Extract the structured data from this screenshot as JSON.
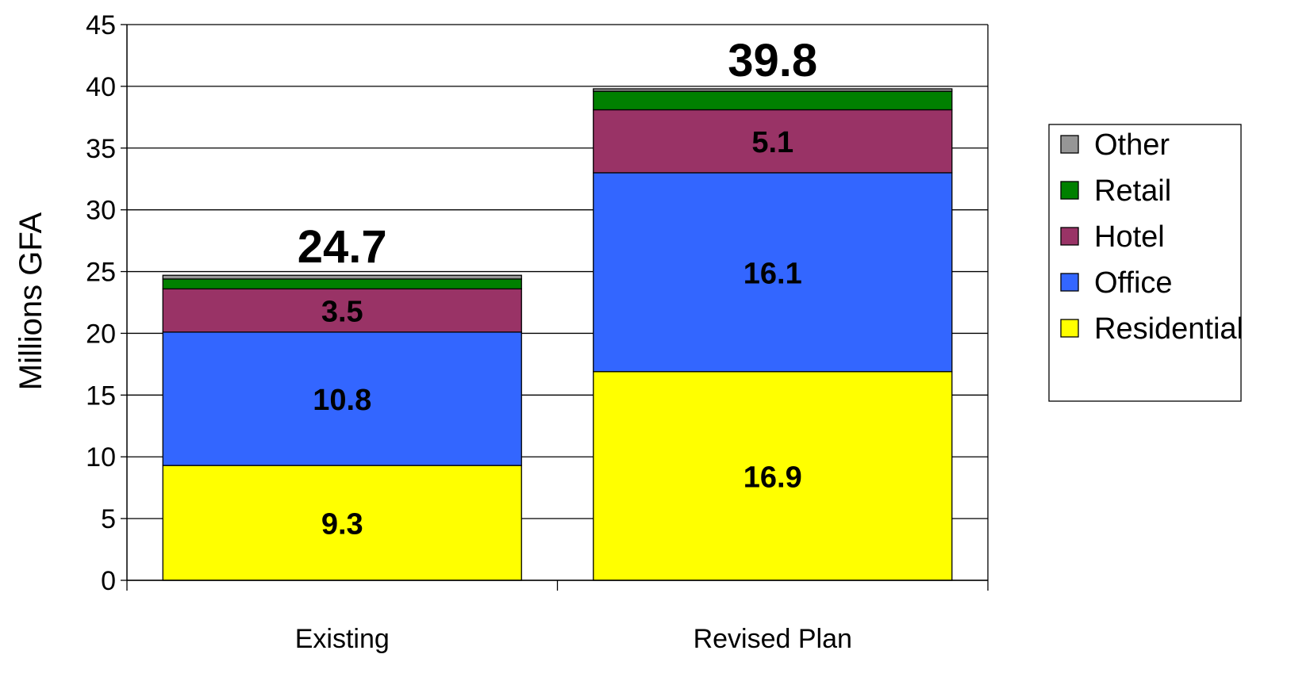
{
  "chart_data": {
    "type": "bar",
    "stacked": true,
    "categories": [
      "Existing",
      "Revised Plan"
    ],
    "ylabel": "Millions GFA",
    "xlabel": "",
    "ylim": [
      0,
      45
    ],
    "yticks": [
      0,
      5,
      10,
      15,
      20,
      25,
      30,
      35,
      40,
      45
    ],
    "grid": true,
    "legend_position": "right",
    "series": [
      {
        "name": "Residential",
        "color": "#ffff00",
        "values": [
          9.3,
          16.9
        ],
        "labels": [
          "9.3",
          "16.9"
        ]
      },
      {
        "name": "Office",
        "color": "#3366ff",
        "values": [
          10.8,
          16.1
        ],
        "labels": [
          "10.8",
          "16.1"
        ]
      },
      {
        "name": "Hotel",
        "color": "#993366",
        "values": [
          3.5,
          5.1
        ],
        "labels": [
          "3.5",
          "5.1"
        ]
      },
      {
        "name": "Retail",
        "color": "#008000",
        "values": [
          0.8,
          1.5
        ],
        "labels": [
          "",
          ""
        ]
      },
      {
        "name": "Other",
        "color": "#969696",
        "values": [
          0.3,
          0.2
        ],
        "labels": [
          "",
          ""
        ]
      }
    ],
    "totals": [
      "24.7",
      "39.8"
    ]
  }
}
